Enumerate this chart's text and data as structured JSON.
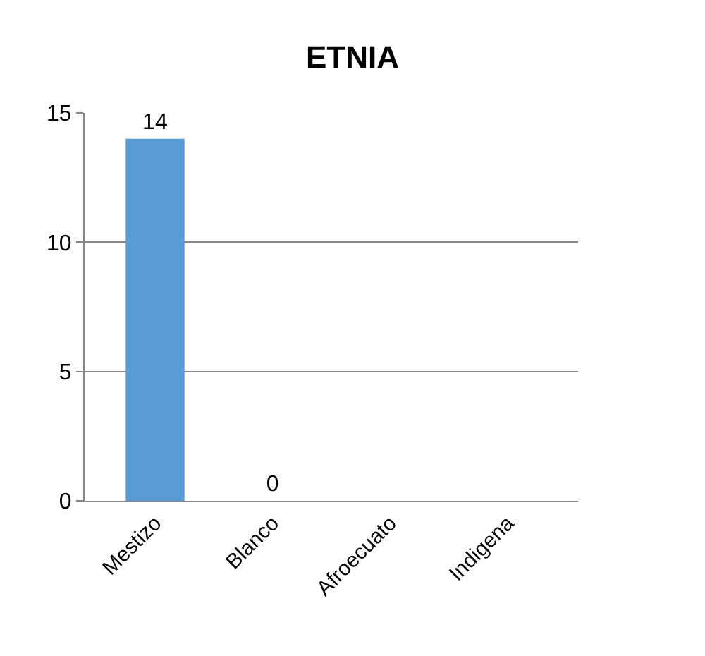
{
  "chart_data": {
    "type": "bar",
    "title": "ETNIA",
    "categories": [
      "Mestizo",
      "Blanco",
      "Afroecuato",
      "Indigena"
    ],
    "values": [
      14,
      0,
      0,
      0
    ],
    "value_labels": [
      "14",
      "0",
      null,
      null
    ],
    "color": "#5b9bd5",
    "ylim": [
      0,
      15
    ],
    "yticks": [
      0,
      5,
      10,
      15
    ],
    "grid": "y",
    "legend": false
  }
}
